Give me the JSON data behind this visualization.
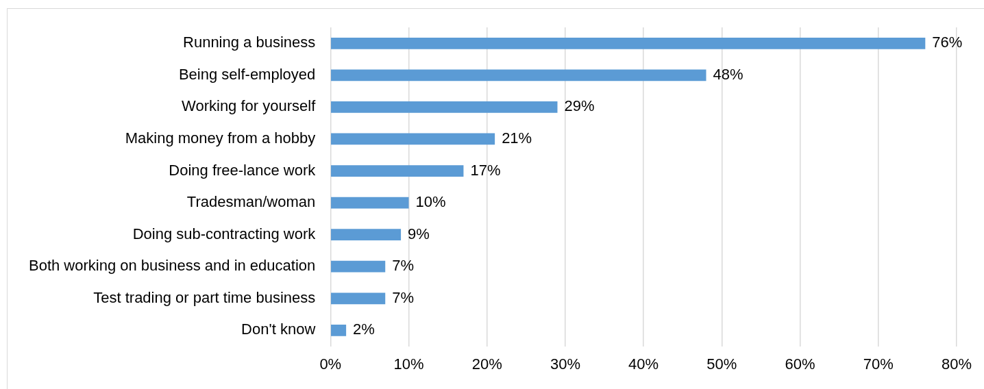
{
  "chart_data": {
    "type": "bar",
    "orientation": "horizontal",
    "categories": [
      "Running a business",
      "Being self-employed",
      "Working for yourself",
      "Making money from a hobby",
      "Doing free-lance work",
      "Tradesman/woman",
      "Doing sub-contracting work",
      "Both working on business and in education",
      "Test trading or part time business",
      "Don't know"
    ],
    "values": [
      76,
      48,
      29,
      21,
      17,
      10,
      9,
      7,
      7,
      2
    ],
    "value_labels": [
      "76%",
      "48%",
      "29%",
      "21%",
      "17%",
      "10%",
      "9%",
      "7%",
      "7%",
      "2%"
    ],
    "color": "#5b9bd5",
    "xlim": [
      0,
      80
    ],
    "xticks": [
      {
        "value": 0,
        "label": "0%"
      },
      {
        "value": 10,
        "label": "10%"
      },
      {
        "value": 20,
        "label": "20%"
      },
      {
        "value": 30,
        "label": "30%"
      },
      {
        "value": 40,
        "label": "40%"
      },
      {
        "value": 50,
        "label": "50%"
      },
      {
        "value": 60,
        "label": "60%"
      },
      {
        "value": 70,
        "label": "70%"
      },
      {
        "value": 80,
        "label": "80%"
      }
    ],
    "grid": "x",
    "legend": false
  }
}
